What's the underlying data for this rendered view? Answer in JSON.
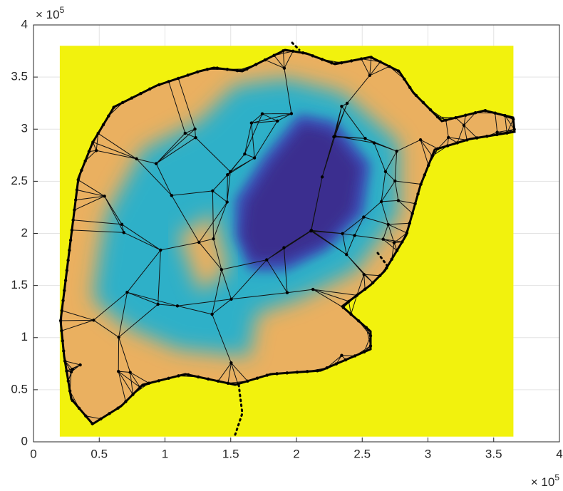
{
  "chart_data": {
    "type": "field",
    "xlim": [
      0,
      4
    ],
    "ylim": [
      0,
      4
    ],
    "xticks": [
      0,
      0.5,
      1,
      1.5,
      2,
      2.5,
      3,
      3.5,
      4
    ],
    "yticks": [
      0,
      0.5,
      1,
      1.5,
      2,
      2.5,
      3,
      3.5,
      4
    ],
    "x_multiplier": {
      "base": "× 10",
      "exponent": "5"
    },
    "y_multiplier": {
      "base": "× 10",
      "exponent": "5"
    },
    "grid": true,
    "field_extent": {
      "x": [
        0.2,
        3.65
      ],
      "y": [
        0.05,
        3.8
      ]
    },
    "background_color": "#f2f20d"
  }
}
